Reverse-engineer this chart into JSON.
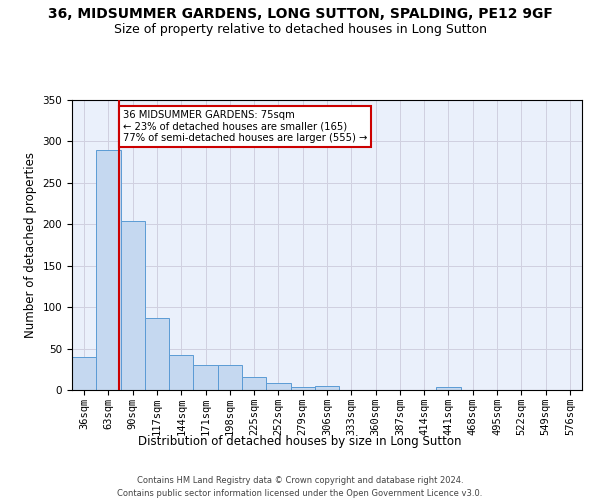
{
  "title1": "36, MIDSUMMER GARDENS, LONG SUTTON, SPALDING, PE12 9GF",
  "title2": "Size of property relative to detached houses in Long Sutton",
  "xlabel": "Distribution of detached houses by size in Long Sutton",
  "ylabel": "Number of detached properties",
  "footer1": "Contains HM Land Registry data © Crown copyright and database right 2024.",
  "footer2": "Contains public sector information licensed under the Open Government Licence v3.0.",
  "bin_labels": [
    "36sqm",
    "63sqm",
    "90sqm",
    "117sqm",
    "144sqm",
    "171sqm",
    "198sqm",
    "225sqm",
    "252sqm",
    "279sqm",
    "306sqm",
    "333sqm",
    "360sqm",
    "387sqm",
    "414sqm",
    "441sqm",
    "468sqm",
    "495sqm",
    "522sqm",
    "549sqm",
    "576sqm"
  ],
  "bar_values": [
    40,
    290,
    204,
    87,
    42,
    30,
    30,
    16,
    8,
    4,
    5,
    0,
    0,
    0,
    0,
    4,
    0,
    0,
    0,
    0,
    0
  ],
  "bar_color": "#c5d8f0",
  "bar_edge_color": "#5b9bd5",
  "subject_line_color": "#cc0000",
  "annotation_text": "36 MIDSUMMER GARDENS: 75sqm\n← 23% of detached houses are smaller (165)\n77% of semi-detached houses are larger (555) →",
  "annotation_box_color": "white",
  "annotation_box_edge_color": "#cc0000",
  "ylim": [
    0,
    350
  ],
  "yticks": [
    0,
    50,
    100,
    150,
    200,
    250,
    300,
    350
  ],
  "grid_color": "#d0d0e0",
  "bg_color": "#eaf0fb",
  "title1_fontsize": 10,
  "title2_fontsize": 9,
  "xlabel_fontsize": 8.5,
  "ylabel_fontsize": 8.5,
  "tick_fontsize": 7.5,
  "footer_fontsize": 6.0
}
